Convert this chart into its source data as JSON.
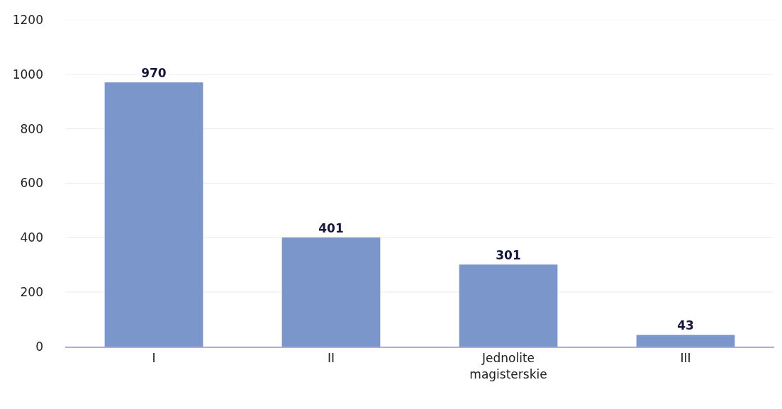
{
  "chart_data": {
    "type": "bar",
    "categories": [
      "I",
      "II",
      "Jednolite magisterskie",
      "III"
    ],
    "values": [
      970,
      401,
      301,
      43
    ],
    "color": "#7a96cb",
    "ylim": [
      0,
      1200
    ],
    "yticks": [
      0,
      200,
      400,
      600,
      800,
      1000,
      1200
    ],
    "grid": "y",
    "data_labels": true
  }
}
